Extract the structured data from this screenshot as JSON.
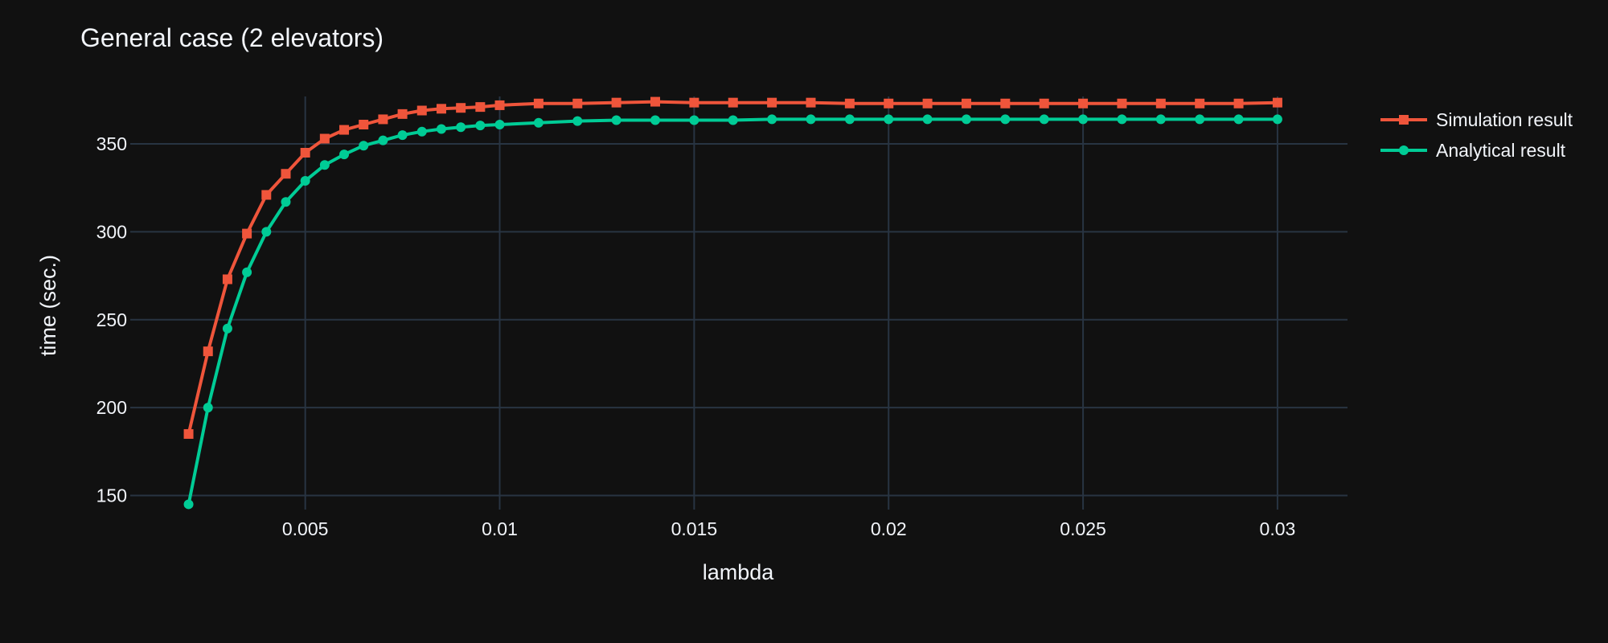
{
  "chart_data": {
    "type": "line",
    "title": "General case (2 elevators)",
    "xlabel": "lambda",
    "ylabel": "time (sec.)",
    "xlim": [
      0.0005,
      0.0318
    ],
    "ylim": [
      142,
      377
    ],
    "grid": true,
    "legend_position": "top-right",
    "x_ticks": [
      {
        "value": 0.005,
        "label": "0.005"
      },
      {
        "value": 0.01,
        "label": "0.01"
      },
      {
        "value": 0.015,
        "label": "0.015"
      },
      {
        "value": 0.02,
        "label": "0.02"
      },
      {
        "value": 0.025,
        "label": "0.025"
      },
      {
        "value": 0.03,
        "label": "0.03"
      }
    ],
    "y_ticks": [
      {
        "value": 150,
        "label": "150"
      },
      {
        "value": 200,
        "label": "200"
      },
      {
        "value": 250,
        "label": "250"
      },
      {
        "value": 300,
        "label": "300"
      },
      {
        "value": 350,
        "label": "350"
      }
    ],
    "series": [
      {
        "name": "Simulation result",
        "color": "#EF553B",
        "marker": "square",
        "x": [
          0.002,
          0.0025,
          0.003,
          0.0035,
          0.004,
          0.0045,
          0.005,
          0.0055,
          0.006,
          0.0065,
          0.007,
          0.0075,
          0.008,
          0.0085,
          0.009,
          0.0095,
          0.01,
          0.011,
          0.012,
          0.013,
          0.014,
          0.015,
          0.016,
          0.017,
          0.018,
          0.019,
          0.02,
          0.021,
          0.022,
          0.023,
          0.024,
          0.025,
          0.026,
          0.027,
          0.028,
          0.029,
          0.03
        ],
        "y": [
          185,
          232,
          273,
          299,
          321,
          333,
          345,
          353,
          358,
          361,
          364,
          367,
          369,
          370,
          370.5,
          371,
          372,
          373,
          373,
          373.5,
          374,
          373.5,
          373.5,
          373.5,
          373.5,
          373,
          373,
          373,
          373,
          373,
          373,
          373,
          373,
          373,
          373,
          373,
          373.5
        ]
      },
      {
        "name": "Analytical result",
        "color": "#00CC96",
        "marker": "circle",
        "x": [
          0.002,
          0.0025,
          0.003,
          0.0035,
          0.004,
          0.0045,
          0.005,
          0.0055,
          0.006,
          0.0065,
          0.007,
          0.0075,
          0.008,
          0.0085,
          0.009,
          0.0095,
          0.01,
          0.011,
          0.012,
          0.013,
          0.014,
          0.015,
          0.016,
          0.017,
          0.018,
          0.019,
          0.02,
          0.021,
          0.022,
          0.023,
          0.024,
          0.025,
          0.026,
          0.027,
          0.028,
          0.029,
          0.03
        ],
        "y": [
          145,
          200,
          245,
          277,
          300,
          317,
          329,
          338,
          344,
          349,
          352,
          355,
          357,
          358.5,
          359.5,
          360.5,
          361,
          362,
          363,
          363.5,
          363.5,
          363.5,
          363.5,
          364,
          364,
          364,
          364,
          364,
          364,
          364,
          364,
          364,
          364,
          364,
          364,
          364,
          364
        ]
      }
    ]
  }
}
